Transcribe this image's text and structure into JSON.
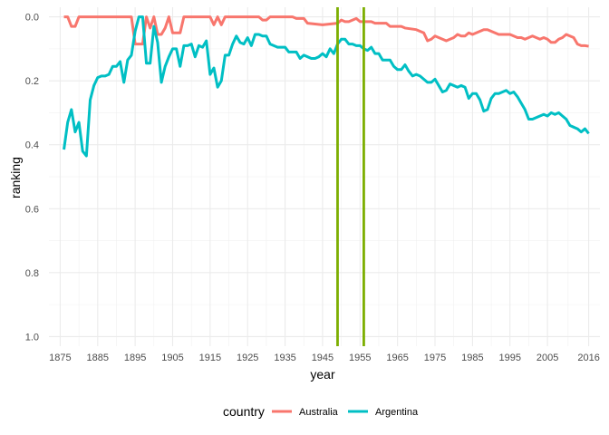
{
  "chart_data": {
    "type": "line",
    "title": "",
    "xlabel": "year",
    "ylabel": "ranking",
    "xlim": [
      1872,
      2019
    ],
    "ylim": [
      -0.03,
      1.03
    ],
    "y_reversed": true,
    "grid": true,
    "legend_position": "bottom",
    "legend_title": "country",
    "x_ticks": [
      1875,
      1885,
      1895,
      1905,
      1915,
      1925,
      1935,
      1945,
      1955,
      1965,
      1975,
      1985,
      1995,
      2005,
      2016
    ],
    "y_ticks": [
      0.0,
      0.2,
      0.4,
      0.6,
      0.8,
      1.0
    ],
    "y_tick_labels": [
      "0.0",
      "0.2",
      "0.4",
      "0.6",
      "0.8",
      "1.0"
    ],
    "vlines": [
      {
        "x": 1949,
        "color": "#7cae00"
      },
      {
        "x": 1956,
        "color": "#7cae00"
      }
    ],
    "series": [
      {
        "name": "Australia",
        "color": "#f8766d",
        "points": [
          [
            1876,
            0.0
          ],
          [
            1877,
            0.0
          ],
          [
            1878,
            0.03
          ],
          [
            1879,
            0.03
          ],
          [
            1880,
            0.0
          ],
          [
            1881,
            0.0
          ],
          [
            1882,
            0.0
          ],
          [
            1885,
            0.0
          ],
          [
            1890,
            0.0
          ],
          [
            1894,
            0.0
          ],
          [
            1895,
            0.085
          ],
          [
            1896,
            0.085
          ],
          [
            1897,
            0.085
          ],
          [
            1898,
            0.0
          ],
          [
            1899,
            0.035
          ],
          [
            1900,
            0.0
          ],
          [
            1901,
            0.055
          ],
          [
            1902,
            0.055
          ],
          [
            1903,
            0.035
          ],
          [
            1904,
            0.0
          ],
          [
            1905,
            0.05
          ],
          [
            1906,
            0.05
          ],
          [
            1907,
            0.05
          ],
          [
            1908,
            0.0
          ],
          [
            1910,
            0.0
          ],
          [
            1914,
            0.0
          ],
          [
            1915,
            0.0
          ],
          [
            1916,
            0.025
          ],
          [
            1917,
            0.0
          ],
          [
            1918,
            0.025
          ],
          [
            1919,
            0.0
          ],
          [
            1925,
            0.0
          ],
          [
            1927,
            0.0
          ],
          [
            1928,
            0.0
          ],
          [
            1929,
            0.01
          ],
          [
            1930,
            0.01
          ],
          [
            1931,
            0.0
          ],
          [
            1937,
            0.0
          ],
          [
            1938,
            0.005
          ],
          [
            1940,
            0.005
          ],
          [
            1941,
            0.02
          ],
          [
            1945,
            0.025
          ],
          [
            1949,
            0.02
          ],
          [
            1950,
            0.01
          ],
          [
            1951,
            0.015
          ],
          [
            1952,
            0.015
          ],
          [
            1953,
            0.01
          ],
          [
            1954,
            0.005
          ],
          [
            1955,
            0.015
          ],
          [
            1956,
            0.015
          ],
          [
            1958,
            0.015
          ],
          [
            1959,
            0.02
          ],
          [
            1962,
            0.02
          ],
          [
            1963,
            0.03
          ],
          [
            1966,
            0.03
          ],
          [
            1967,
            0.035
          ],
          [
            1970,
            0.04
          ],
          [
            1972,
            0.05
          ],
          [
            1973,
            0.075
          ],
          [
            1974,
            0.07
          ],
          [
            1975,
            0.06
          ],
          [
            1976,
            0.065
          ],
          [
            1977,
            0.07
          ],
          [
            1978,
            0.075
          ],
          [
            1979,
            0.07
          ],
          [
            1980,
            0.065
          ],
          [
            1981,
            0.055
          ],
          [
            1982,
            0.06
          ],
          [
            1983,
            0.06
          ],
          [
            1984,
            0.05
          ],
          [
            1985,
            0.055
          ],
          [
            1986,
            0.05
          ],
          [
            1987,
            0.045
          ],
          [
            1988,
            0.04
          ],
          [
            1989,
            0.04
          ],
          [
            1990,
            0.045
          ],
          [
            1991,
            0.05
          ],
          [
            1992,
            0.055
          ],
          [
            1993,
            0.055
          ],
          [
            1995,
            0.055
          ],
          [
            1996,
            0.06
          ],
          [
            1997,
            0.065
          ],
          [
            1998,
            0.065
          ],
          [
            1999,
            0.07
          ],
          [
            2000,
            0.065
          ],
          [
            2001,
            0.06
          ],
          [
            2002,
            0.065
          ],
          [
            2003,
            0.07
          ],
          [
            2004,
            0.065
          ],
          [
            2005,
            0.07
          ],
          [
            2006,
            0.08
          ],
          [
            2007,
            0.08
          ],
          [
            2008,
            0.07
          ],
          [
            2009,
            0.065
          ],
          [
            2010,
            0.055
          ],
          [
            2011,
            0.06
          ],
          [
            2012,
            0.065
          ],
          [
            2013,
            0.085
          ],
          [
            2014,
            0.09
          ],
          [
            2015,
            0.09
          ],
          [
            2016,
            0.092
          ]
        ]
      },
      {
        "name": "Argentina",
        "color": "#00bfc4",
        "points": [
          [
            1876,
            0.415
          ],
          [
            1877,
            0.33
          ],
          [
            1878,
            0.29
          ],
          [
            1879,
            0.36
          ],
          [
            1880,
            0.33
          ],
          [
            1881,
            0.42
          ],
          [
            1882,
            0.435
          ],
          [
            1883,
            0.26
          ],
          [
            1884,
            0.215
          ],
          [
            1885,
            0.19
          ],
          [
            1886,
            0.185
          ],
          [
            1887,
            0.185
          ],
          [
            1888,
            0.18
          ],
          [
            1889,
            0.155
          ],
          [
            1890,
            0.155
          ],
          [
            1891,
            0.14
          ],
          [
            1892,
            0.205
          ],
          [
            1893,
            0.135
          ],
          [
            1894,
            0.12
          ],
          [
            1895,
            0.045
          ],
          [
            1896,
            0.0
          ],
          [
            1897,
            0.0
          ],
          [
            1898,
            0.145
          ],
          [
            1899,
            0.145
          ],
          [
            1900,
            0.03
          ],
          [
            1901,
            0.08
          ],
          [
            1902,
            0.205
          ],
          [
            1903,
            0.155
          ],
          [
            1904,
            0.125
          ],
          [
            1905,
            0.1
          ],
          [
            1906,
            0.1
          ],
          [
            1907,
            0.155
          ],
          [
            1908,
            0.09
          ],
          [
            1909,
            0.09
          ],
          [
            1910,
            0.085
          ],
          [
            1911,
            0.125
          ],
          [
            1912,
            0.09
          ],
          [
            1913,
            0.095
          ],
          [
            1914,
            0.075
          ],
          [
            1915,
            0.18
          ],
          [
            1916,
            0.16
          ],
          [
            1917,
            0.22
          ],
          [
            1918,
            0.2
          ],
          [
            1919,
            0.12
          ],
          [
            1920,
            0.12
          ],
          [
            1921,
            0.085
          ],
          [
            1922,
            0.06
          ],
          [
            1923,
            0.08
          ],
          [
            1924,
            0.085
          ],
          [
            1925,
            0.065
          ],
          [
            1926,
            0.09
          ],
          [
            1927,
            0.055
          ],
          [
            1928,
            0.055
          ],
          [
            1929,
            0.06
          ],
          [
            1930,
            0.06
          ],
          [
            1931,
            0.085
          ],
          [
            1932,
            0.09
          ],
          [
            1933,
            0.095
          ],
          [
            1934,
            0.095
          ],
          [
            1935,
            0.095
          ],
          [
            1936,
            0.11
          ],
          [
            1937,
            0.11
          ],
          [
            1938,
            0.11
          ],
          [
            1939,
            0.13
          ],
          [
            1940,
            0.12
          ],
          [
            1941,
            0.125
          ],
          [
            1942,
            0.13
          ],
          [
            1943,
            0.13
          ],
          [
            1944,
            0.125
          ],
          [
            1945,
            0.115
          ],
          [
            1946,
            0.125
          ],
          [
            1947,
            0.1
          ],
          [
            1948,
            0.115
          ],
          [
            1949,
            0.085
          ],
          [
            1950,
            0.07
          ],
          [
            1951,
            0.07
          ],
          [
            1952,
            0.085
          ],
          [
            1953,
            0.085
          ],
          [
            1954,
            0.09
          ],
          [
            1955,
            0.09
          ],
          [
            1956,
            0.1
          ],
          [
            1957,
            0.105
          ],
          [
            1958,
            0.095
          ],
          [
            1959,
            0.115
          ],
          [
            1960,
            0.115
          ],
          [
            1961,
            0.135
          ],
          [
            1962,
            0.135
          ],
          [
            1963,
            0.135
          ],
          [
            1964,
            0.155
          ],
          [
            1965,
            0.165
          ],
          [
            1966,
            0.165
          ],
          [
            1967,
            0.15
          ],
          [
            1968,
            0.17
          ],
          [
            1969,
            0.185
          ],
          [
            1970,
            0.18
          ],
          [
            1971,
            0.185
          ],
          [
            1972,
            0.195
          ],
          [
            1973,
            0.205
          ],
          [
            1974,
            0.205
          ],
          [
            1975,
            0.195
          ],
          [
            1976,
            0.215
          ],
          [
            1977,
            0.235
          ],
          [
            1978,
            0.23
          ],
          [
            1979,
            0.21
          ],
          [
            1980,
            0.215
          ],
          [
            1981,
            0.22
          ],
          [
            1982,
            0.215
          ],
          [
            1983,
            0.22
          ],
          [
            1984,
            0.255
          ],
          [
            1985,
            0.24
          ],
          [
            1986,
            0.24
          ],
          [
            1987,
            0.26
          ],
          [
            1988,
            0.295
          ],
          [
            1989,
            0.29
          ],
          [
            1990,
            0.255
          ],
          [
            1991,
            0.24
          ],
          [
            1992,
            0.24
          ],
          [
            1993,
            0.235
          ],
          [
            1994,
            0.23
          ],
          [
            1995,
            0.24
          ],
          [
            1996,
            0.235
          ],
          [
            1997,
            0.25
          ],
          [
            1998,
            0.27
          ],
          [
            1999,
            0.29
          ],
          [
            2000,
            0.32
          ],
          [
            2001,
            0.32
          ],
          [
            2002,
            0.315
          ],
          [
            2003,
            0.31
          ],
          [
            2004,
            0.305
          ],
          [
            2005,
            0.31
          ],
          [
            2006,
            0.3
          ],
          [
            2007,
            0.305
          ],
          [
            2008,
            0.3
          ],
          [
            2009,
            0.31
          ],
          [
            2010,
            0.32
          ],
          [
            2011,
            0.34
          ],
          [
            2012,
            0.345
          ],
          [
            2013,
            0.35
          ],
          [
            2014,
            0.36
          ],
          [
            2015,
            0.35
          ],
          [
            2016,
            0.365
          ]
        ]
      }
    ]
  }
}
